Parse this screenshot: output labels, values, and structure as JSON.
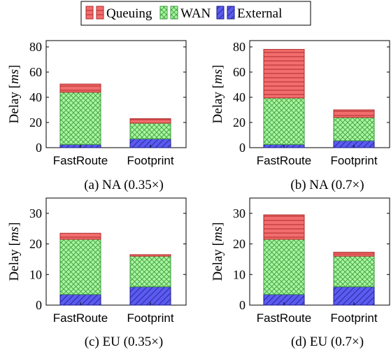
{
  "legend": {
    "items": [
      {
        "key": "queuing",
        "label": "Queuing"
      },
      {
        "key": "wan",
        "label": "WAN"
      },
      {
        "key": "external",
        "label": "External"
      }
    ]
  },
  "colors": {
    "queuing": "#f26d6d",
    "wan": "#a8f5a0",
    "external": "#5b5bf0",
    "queuing_pattern": "horizontal-lines",
    "wan_pattern": "crosshatch",
    "external_pattern": "diagonal-lines"
  },
  "chart_data": [
    {
      "type": "bar",
      "stacked": true,
      "caption": "(a) NA (0.35×)",
      "categories": [
        "FastRoute",
        "Footprint"
      ],
      "ylabel_prefix": "Delay ",
      "ylabel_unit": "ms",
      "ylim": [
        0,
        85
      ],
      "yticks": [
        0,
        20,
        40,
        60,
        80
      ],
      "series": [
        {
          "name": "External",
          "values": [
            2.5,
            7
          ]
        },
        {
          "name": "WAN",
          "values": [
            41.5,
            12.5
          ]
        },
        {
          "name": "Queuing",
          "values": [
            6.5,
            3.5
          ]
        }
      ]
    },
    {
      "type": "bar",
      "stacked": true,
      "caption": "(b) NA (0.7×)",
      "categories": [
        "FastRoute",
        "Footprint"
      ],
      "ylabel_prefix": "Delay ",
      "ylabel_unit": "ms",
      "ylim": [
        0,
        85
      ],
      "yticks": [
        0,
        20,
        40,
        60,
        80
      ],
      "series": [
        {
          "name": "External",
          "values": [
            2.5,
            5.5
          ]
        },
        {
          "name": "WAN",
          "values": [
            37,
            18.5
          ]
        },
        {
          "name": "Queuing",
          "values": [
            38.5,
            6
          ]
        }
      ]
    },
    {
      "type": "bar",
      "stacked": true,
      "caption": "(c) EU (0.35×)",
      "categories": [
        "FastRoute",
        "Footprint"
      ],
      "ylabel_prefix": "Delay ",
      "ylabel_unit": "ms",
      "ylim": [
        0,
        35
      ],
      "yticks": [
        0,
        10,
        20,
        30
      ],
      "series": [
        {
          "name": "External",
          "values": [
            3.5,
            6
          ]
        },
        {
          "name": "WAN",
          "values": [
            18,
            10
          ]
        },
        {
          "name": "Queuing",
          "values": [
            2,
            0.5
          ]
        }
      ]
    },
    {
      "type": "bar",
      "stacked": true,
      "caption": "(d) EU (0.7×)",
      "categories": [
        "FastRoute",
        "Footprint"
      ],
      "ylabel_prefix": "Delay ",
      "ylabel_unit": "ms",
      "ylim": [
        0,
        35
      ],
      "yticks": [
        0,
        10,
        20,
        30
      ],
      "series": [
        {
          "name": "External",
          "values": [
            3.5,
            6
          ]
        },
        {
          "name": "WAN",
          "values": [
            18,
            10
          ]
        },
        {
          "name": "Queuing",
          "values": [
            8,
            1.3
          ]
        }
      ]
    }
  ]
}
